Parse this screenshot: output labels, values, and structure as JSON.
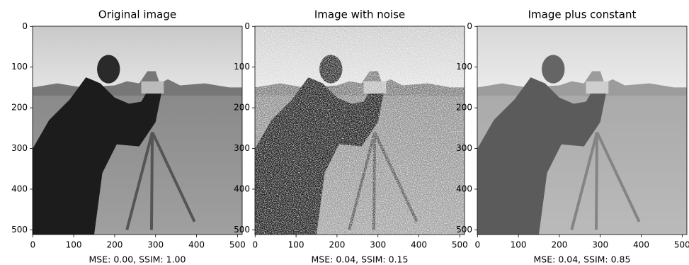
{
  "chart_data": [
    {
      "type": "image",
      "title": "Original image",
      "xlabel": "MSE: 0.00, SSIM: 1.00",
      "xlim": [
        -0.5,
        511.5
      ],
      "ylim": [
        511.5,
        -0.5
      ],
      "xticks": [
        0,
        100,
        200,
        300,
        400,
        500
      ],
      "yticks": [
        0,
        100,
        200,
        300,
        400,
        500
      ]
    },
    {
      "type": "image",
      "title": "Image with noise",
      "xlabel": "MSE: 0.04, SSIM: 0.15",
      "xlim": [
        -0.5,
        511.5
      ],
      "ylim": [
        511.5,
        -0.5
      ],
      "xticks": [
        0,
        100,
        200,
        300,
        400,
        500
      ],
      "yticks": [
        0,
        100,
        200,
        300,
        400,
        500
      ]
    },
    {
      "type": "image",
      "title": "Image plus constant",
      "xlabel": "MSE: 0.04, SSIM: 0.85",
      "xlim": [
        -0.5,
        511.5
      ],
      "ylim": [
        511.5,
        -0.5
      ],
      "xticks": [
        0,
        100,
        200,
        300,
        400,
        500
      ],
      "yticks": [
        0,
        100,
        200,
        300,
        400,
        500
      ]
    }
  ]
}
